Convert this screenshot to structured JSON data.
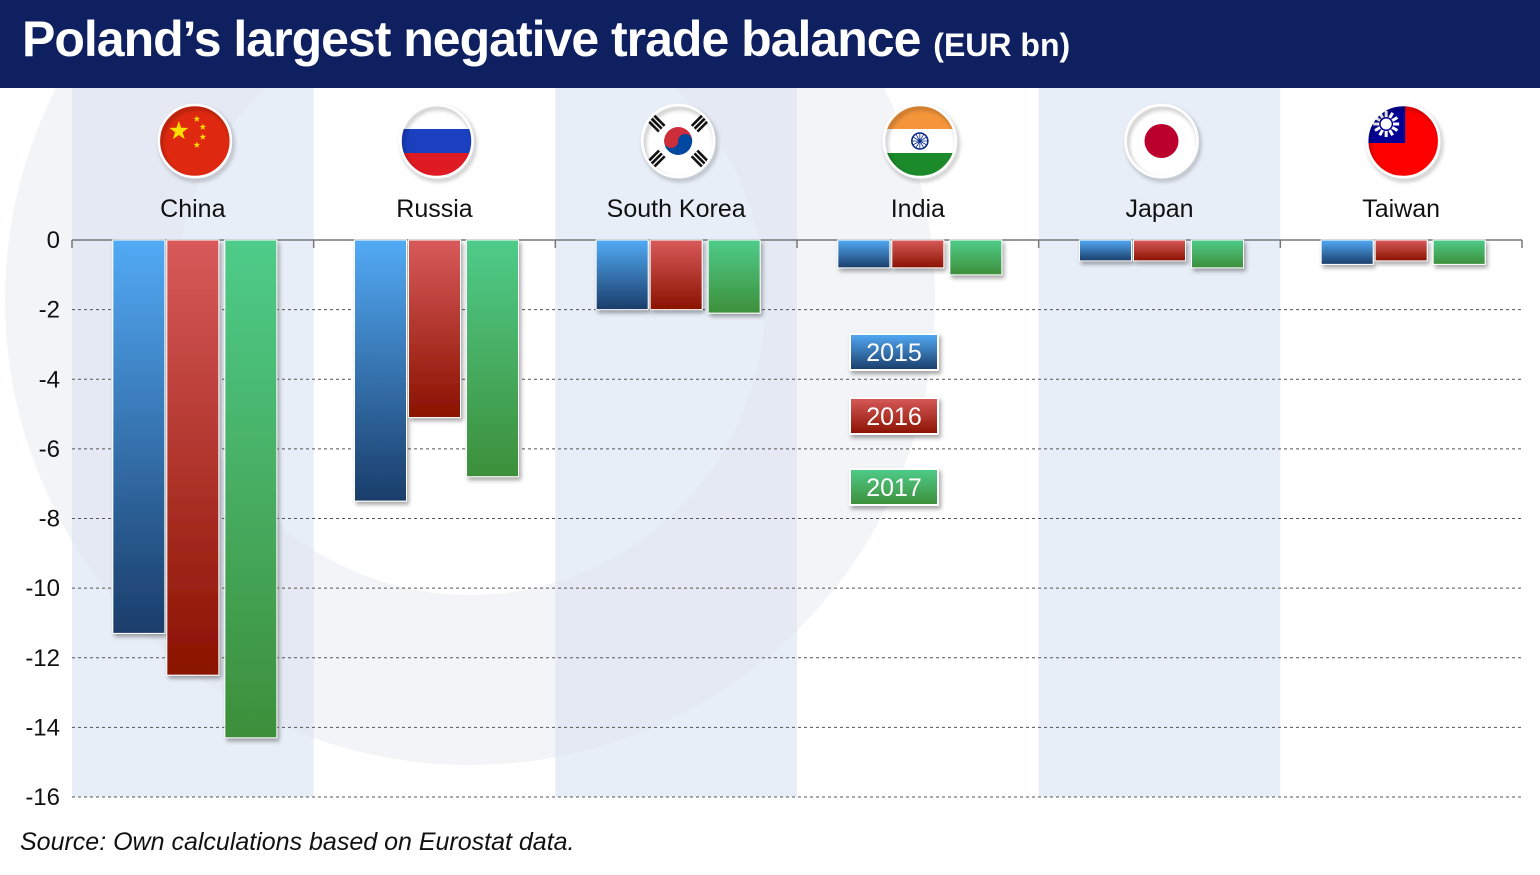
{
  "title": "Poland’s largest negative trade balance",
  "unit": "(EUR bn)",
  "source": "Source: Own calculations based on Eurostat data.",
  "colors": {
    "header": "#0f2060",
    "band": "#e8eef8",
    "s2015_top": "#52aaf5",
    "s2015_bottom": "#1a3d6a",
    "s2016_top": "#d85a5a",
    "s2016_bottom": "#8a1200",
    "s2017_top": "#4fcc8a",
    "s2017_bottom": "#3d8f3a"
  },
  "chart_data": {
    "type": "bar",
    "title": "Poland’s largest negative trade balance (EUR bn)",
    "categories": [
      "China",
      "Russia",
      "South Korea",
      "India",
      "Japan",
      "Taiwan"
    ],
    "flag_icons": [
      "china-flag-icon",
      "russia-flag-icon",
      "south-korea-flag-icon",
      "india-flag-icon",
      "japan-flag-icon",
      "taiwan-flag-icon"
    ],
    "series": [
      {
        "name": "2015",
        "values": [
          -11.3,
          -7.5,
          -2.0,
          -0.8,
          -0.6,
          -0.7
        ]
      },
      {
        "name": "2016",
        "values": [
          -12.5,
          -5.1,
          -2.0,
          -0.8,
          -0.6,
          -0.6
        ]
      },
      {
        "name": "2017",
        "values": [
          -14.3,
          -6.8,
          -2.1,
          -1.0,
          -0.8,
          -0.7
        ]
      }
    ],
    "ylim": [
      -16,
      0
    ],
    "yticks": [
      0,
      -2,
      -4,
      -6,
      -8,
      -10,
      -12,
      -14,
      -16
    ],
    "ytick_labels": [
      "0",
      "-2",
      "-4",
      "-6",
      "-8",
      "-10",
      "-12",
      "-14",
      "-16"
    ],
    "grid": "horizontal dashed",
    "legend_position": "center",
    "xlabel": "",
    "ylabel": ""
  }
}
